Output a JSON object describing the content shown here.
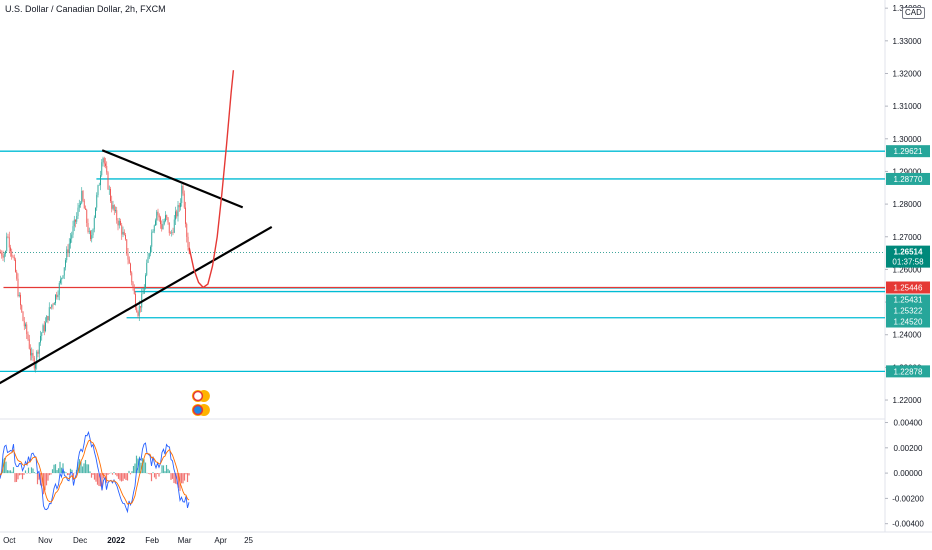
{
  "header": {
    "title": "U.S. Dollar / Canadian Dollar, 2h, FXCM"
  },
  "axis": {
    "currency_label": "CAD"
  },
  "colors": {
    "candle_up": "#26a69a",
    "candle_down": "#ef5350",
    "level_line": "#00bcd4",
    "trend_line": "#000000",
    "projection": "#e53935",
    "macd_line": "#2962ff",
    "signal_line": "#ff6d00",
    "price_tag": "#26a69a",
    "current_tag": "#00897b",
    "red_tag": "#e53935"
  },
  "chart_data": {
    "type": "candlestick",
    "x_tick_labels": [
      "Oct",
      "Nov",
      "Dec",
      "2022",
      "Feb",
      "Mar",
      "Apr",
      "25"
    ],
    "y_ticks_main": [
      "1.34000",
      "1.33000",
      "1.32000",
      "1.31000",
      "1.30000",
      "1.29000",
      "1.28000",
      "1.27000",
      "1.26000",
      "1.25000",
      "1.24000",
      "1.23000",
      "1.22000"
    ],
    "y_ticks_indicator": [
      "0.00400",
      "0.00200",
      "0.00000",
      "-0.00200",
      "-0.00400"
    ],
    "ylim_main": [
      1.2145,
      1.3425
    ],
    "ylim_indicator": [
      -0.0045,
      0.0042
    ],
    "price_path": [
      [
        "2021-09-28",
        1.272
      ],
      [
        "2021-10-02",
        1.267
      ],
      [
        "2021-10-06",
        1.26
      ],
      [
        "2021-10-09",
        1.252
      ],
      [
        "2021-10-13",
        1.244
      ],
      [
        "2021-10-17",
        1.239
      ],
      [
        "2021-10-20",
        1.233
      ],
      [
        "2021-10-23",
        1.231
      ],
      [
        "2021-10-28",
        1.24
      ],
      [
        "2021-11-01",
        1.243
      ],
      [
        "2021-11-05",
        1.248
      ],
      [
        "2021-11-10",
        1.252
      ],
      [
        "2021-11-14",
        1.256
      ],
      [
        "2021-11-19",
        1.264
      ],
      [
        "2021-11-23",
        1.27
      ],
      [
        "2021-11-28",
        1.276
      ],
      [
        "2021-12-02",
        1.283
      ],
      [
        "2021-12-06",
        1.276
      ],
      [
        "2021-12-10",
        1.268
      ],
      [
        "2021-12-14",
        1.279
      ],
      [
        "2021-12-18",
        1.288
      ],
      [
        "2021-12-20",
        1.296
      ],
      [
        "2021-12-24",
        1.288
      ],
      [
        "2021-12-28",
        1.28
      ],
      [
        "2022-01-01",
        1.276
      ],
      [
        "2022-01-05",
        1.273
      ],
      [
        "2022-01-09",
        1.268
      ],
      [
        "2022-01-13",
        1.26
      ],
      [
        "2022-01-17",
        1.251
      ],
      [
        "2022-01-20",
        1.247
      ],
      [
        "2022-01-24",
        1.252
      ],
      [
        "2022-01-28",
        1.262
      ],
      [
        "2022-02-01",
        1.272
      ],
      [
        "2022-02-05",
        1.278
      ],
      [
        "2022-02-09",
        1.273
      ],
      [
        "2022-02-13",
        1.276
      ],
      [
        "2022-02-17",
        1.27
      ],
      [
        "2022-02-21",
        1.276
      ],
      [
        "2022-02-25",
        1.28
      ],
      [
        "2022-02-27",
        1.287
      ],
      [
        "2022-03-01",
        1.279
      ],
      [
        "2022-03-03",
        1.27
      ],
      [
        "2022-03-05",
        1.2651
      ]
    ],
    "horizontal_levels": [
      {
        "value": 1.29621,
        "label": "1.29621",
        "start": "2021-09-23"
      },
      {
        "value": 1.2877,
        "label": "1.28770",
        "start": "2021-12-15"
      },
      {
        "value": 1.25431,
        "label": "1.25431",
        "start": "2022-01-17"
      },
      {
        "value": 1.25322,
        "label": "1.25322",
        "start": "2022-01-17"
      },
      {
        "value": 1.2452,
        "label": "1.24520",
        "start": "2022-01-10"
      },
      {
        "value": 1.22878,
        "label": "1.22878",
        "start": "2021-09-23"
      }
    ],
    "red_level": {
      "value": 1.25446,
      "label": "1.25446",
      "start": "2021-09-26"
    },
    "current_price": {
      "value": 1.26514,
      "label": "1.26514",
      "countdown": "01:37:58"
    },
    "trend_lines": [
      {
        "from": [
          "2021-09-22",
          1.225
        ],
        "to": [
          "2022-05-15",
          1.273
        ]
      },
      {
        "from": [
          "2021-12-20",
          1.2965
        ],
        "to": [
          "2022-04-20",
          1.279
        ]
      }
    ],
    "projection_path": [
      [
        "2022-03-05",
        1.2665
      ],
      [
        "2022-03-09",
        1.26
      ],
      [
        "2022-03-13",
        1.256
      ],
      [
        "2022-03-17",
        1.2545
      ],
      [
        "2022-03-21",
        1.2555
      ],
      [
        "2022-03-25",
        1.261
      ],
      [
        "2022-03-29",
        1.27
      ],
      [
        "2022-04-02",
        1.283
      ],
      [
        "2022-04-06",
        1.298
      ],
      [
        "2022-04-10",
        1.314
      ],
      [
        "2022-04-12",
        1.321
      ]
    ]
  }
}
